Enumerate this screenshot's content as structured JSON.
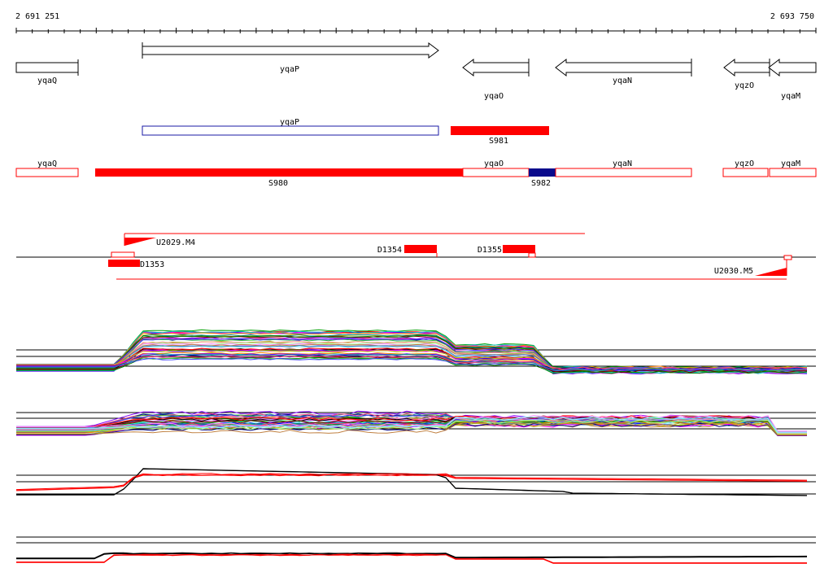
{
  "coords": {
    "start_label": "2 691 251",
    "end_label": "2 693 750",
    "start": 2691251,
    "end": 2693750
  },
  "gene_track": [
    {
      "name": "yqaQ",
      "strand": "+"
    },
    {
      "name": "yqaP",
      "strand": "+"
    },
    {
      "name": "yqaO",
      "strand": "-"
    },
    {
      "name": "yqaN",
      "strand": "-"
    },
    {
      "name": "yqzO",
      "strand": "-"
    },
    {
      "name": "yqaM",
      "strand": "-"
    }
  ],
  "transcript_row1": [
    {
      "name": "yqaP",
      "filled": false,
      "color": "#1a1aa6"
    },
    {
      "name": "S981",
      "filled": true,
      "color": "#ff0000"
    }
  ],
  "transcript_row2": [
    {
      "name": "yqaQ",
      "filled": false,
      "color": "#ff0000"
    },
    {
      "name": "S980",
      "filled": true,
      "color": "#ff0000"
    },
    {
      "name": "yqaO",
      "filled": false,
      "color": "#ff0000"
    },
    {
      "name": "S982",
      "filled": true,
      "color": "#0a0a8c"
    },
    {
      "name": "yqaN",
      "filled": false,
      "color": "#ff0000"
    },
    {
      "name": "yqzO",
      "filled": false,
      "color": "#ff0000"
    },
    {
      "name": "yqaM",
      "filled": false,
      "color": "#ff0000"
    }
  ],
  "features": [
    {
      "name": "U2029.M4",
      "kind": "upshift"
    },
    {
      "name": "D1353",
      "kind": "downshift"
    },
    {
      "name": "D1354",
      "kind": "downshift"
    },
    {
      "name": "D1355",
      "kind": "downshift"
    },
    {
      "name": "U2030.M5",
      "kind": "upshift"
    }
  ],
  "colors": {
    "accent": "#ff0000",
    "dark_blue": "#0a0a8c",
    "outline_blue": "#1a1aa6",
    "axis": "#000000"
  },
  "expression_panels": [
    {
      "description_id": "panel-1",
      "profile_count": 40
    },
    {
      "description_id": "panel-2",
      "profile_count": 40
    },
    {
      "description_id": "panel-3",
      "profile_count": 6
    },
    {
      "description_id": "panel-4",
      "profile_count": 6
    }
  ]
}
